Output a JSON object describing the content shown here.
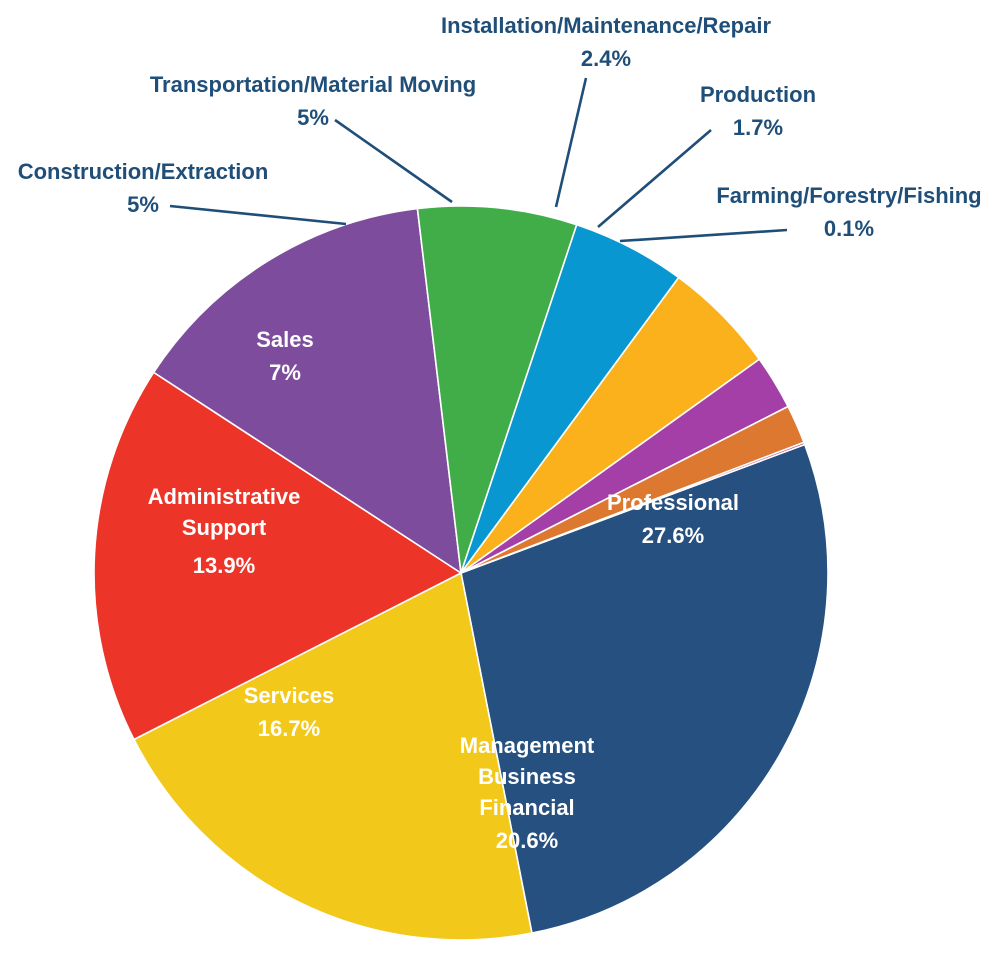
{
  "chart_data": {
    "type": "pie",
    "title": "",
    "slices": [
      {
        "name": "Professional",
        "value": 27.6,
        "value_label": "27.6%",
        "color": "#26507f",
        "label_color": "#ffffff",
        "label_lines": [
          "Professional"
        ]
      },
      {
        "name": "Management Business Financial",
        "value": 20.6,
        "value_label": "20.6%",
        "color": "#f2c81b",
        "label_color": "#ffffff",
        "label_lines": [
          "Management",
          "Business",
          "Financial"
        ]
      },
      {
        "name": "Services",
        "value": 16.7,
        "value_label": "16.7%",
        "color": "#ec3528",
        "label_color": "#ffffff",
        "label_lines": [
          "Services"
        ]
      },
      {
        "name": "Administrative Support",
        "value": 13.9,
        "value_label": "13.9%",
        "color": "#7e4c9d",
        "label_color": "#ffffff",
        "label_lines": [
          "Administrative",
          "Support"
        ]
      },
      {
        "name": "Sales",
        "value": 7,
        "value_label": "7%",
        "color": "#41ad49",
        "label_color": "#ffffff",
        "label_lines": [
          "Sales"
        ]
      },
      {
        "name": "Construction/Extraction",
        "value": 5,
        "value_label": "5%",
        "color": "#0897d0",
        "label_color": "#1f4e79",
        "label_lines": [
          "Construction/Extraction"
        ]
      },
      {
        "name": "Transportation/Material Moving",
        "value": 5,
        "value_label": "5%",
        "color": "#fbb11b",
        "label_color": "#1f4e79",
        "label_lines": [
          "Transportation/Material Moving"
        ]
      },
      {
        "name": "Installation/Maintenance/Repair",
        "value": 2.4,
        "value_label": "2.4%",
        "color": "#a43fa8",
        "label_color": "#1f4e79",
        "label_lines": [
          "Installation/Maintenance/Repair"
        ]
      },
      {
        "name": "Production",
        "value": 1.7,
        "value_label": "1.7%",
        "color": "#dd7831",
        "label_color": "#1f4e79",
        "label_lines": [
          "Production"
        ]
      },
      {
        "name": "Farming/Forestry/Fishing",
        "value": 0.1,
        "value_label": "0.1%",
        "color": "#b23d95",
        "label_color": "#1f4e79",
        "label_lines": [
          "Farming/Forestry/Fishing"
        ]
      }
    ]
  }
}
